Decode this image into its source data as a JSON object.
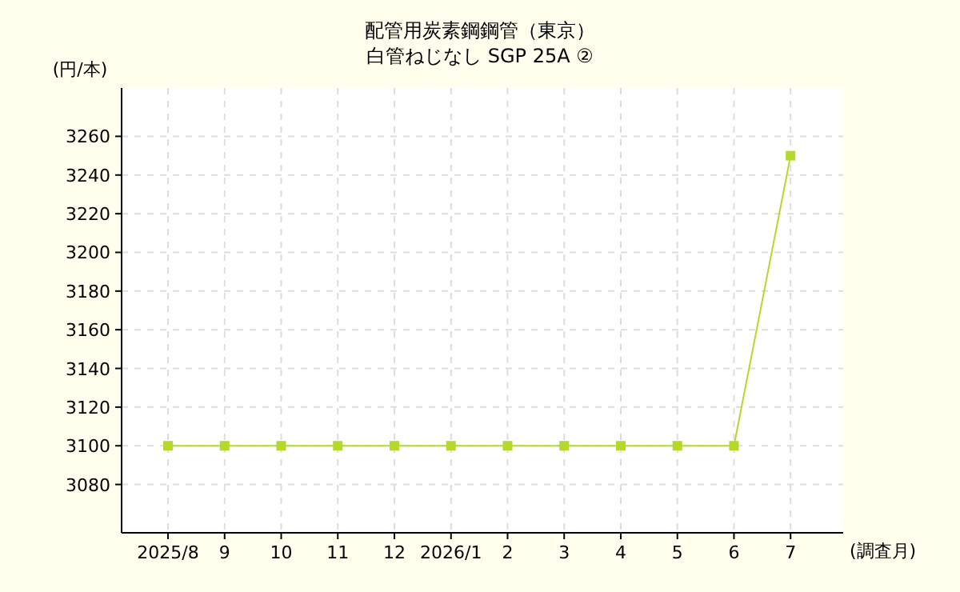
{
  "chart_data": {
    "type": "line",
    "title": "配管用炭素鋼鋼管（東京）",
    "subtitle": "白管ねじなし SGP 25A ②",
    "ylabel": "(円/本)",
    "xlabel": "(調査月)",
    "categories": [
      "2025/8",
      "9",
      "10",
      "11",
      "12",
      "2026/1",
      "2",
      "3",
      "4",
      "5",
      "6",
      "7"
    ],
    "series": [
      {
        "color": "#b5d92b",
        "values": [
          3100,
          3100,
          3100,
          3100,
          3100,
          3100,
          3100,
          3100,
          3100,
          3100,
          3100,
          3250
        ]
      }
    ],
    "ylim": [
      3055,
      3285
    ],
    "yticks": [
      3080,
      3100,
      3120,
      3140,
      3160,
      3180,
      3200,
      3220,
      3240,
      3260
    ],
    "grid": true,
    "marker": "square",
    "line_style": "solid"
  }
}
